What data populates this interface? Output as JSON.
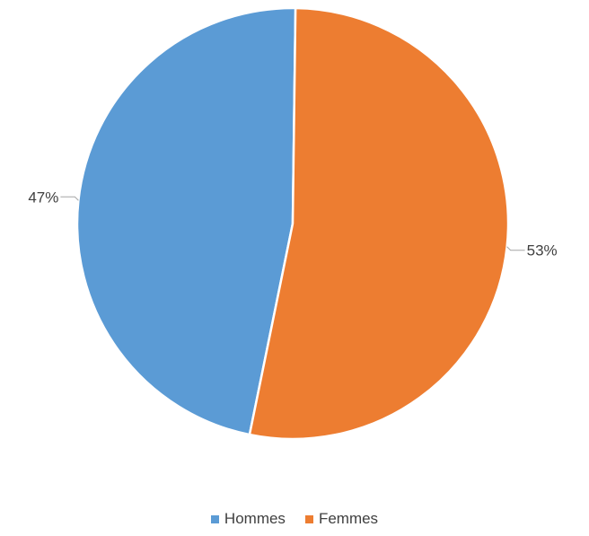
{
  "chart_data": {
    "type": "pie",
    "categories": [
      "Hommes",
      "Femmes"
    ],
    "values": [
      47,
      53
    ],
    "data_labels": [
      "47%",
      "53%"
    ],
    "colors": [
      "#5b9bd5",
      "#ed7d31"
    ],
    "legend_position": "bottom"
  }
}
